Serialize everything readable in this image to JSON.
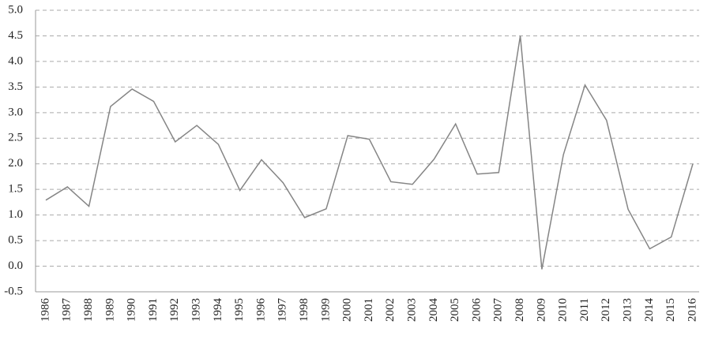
{
  "chart_data": {
    "type": "line",
    "categories": [
      "1986",
      "1987",
      "1988",
      "1989",
      "1990",
      "1991",
      "1992",
      "1993",
      "1994",
      "1995",
      "1996",
      "1997",
      "1998",
      "1999",
      "2000",
      "2001",
      "2002",
      "2003",
      "2004",
      "2005",
      "2006",
      "2007",
      "2008",
      "2009",
      "2010",
      "2011",
      "2012",
      "2013",
      "2014",
      "2015",
      "2016"
    ],
    "series": [
      {
        "color": "#858585",
        "values": [
          1.29,
          1.55,
          1.17,
          3.12,
          3.46,
          3.22,
          2.43,
          2.75,
          2.38,
          1.48,
          2.08,
          1.63,
          0.95,
          1.12,
          2.55,
          2.48,
          1.65,
          1.6,
          2.09,
          2.78,
          1.8,
          1.83,
          4.5,
          -0.06,
          2.18,
          3.54,
          2.85,
          1.11,
          0.34,
          0.57,
          2.0
        ]
      }
    ],
    "ylim": [
      -0.5,
      5.0
    ],
    "yticks": [
      -0.5,
      {
        "value": 0,
        "label": "0.0"
      },
      0.5,
      {
        "value": 1,
        "label": "1.0"
      },
      1.5,
      {
        "value": 2,
        "label": "2.0"
      },
      2.5,
      {
        "value": 3,
        "label": "3.0"
      },
      3.5,
      {
        "value": 4,
        "label": "4.0"
      },
      4.5,
      {
        "value": 5,
        "label": "5.0"
      }
    ],
    "grid": true
  }
}
